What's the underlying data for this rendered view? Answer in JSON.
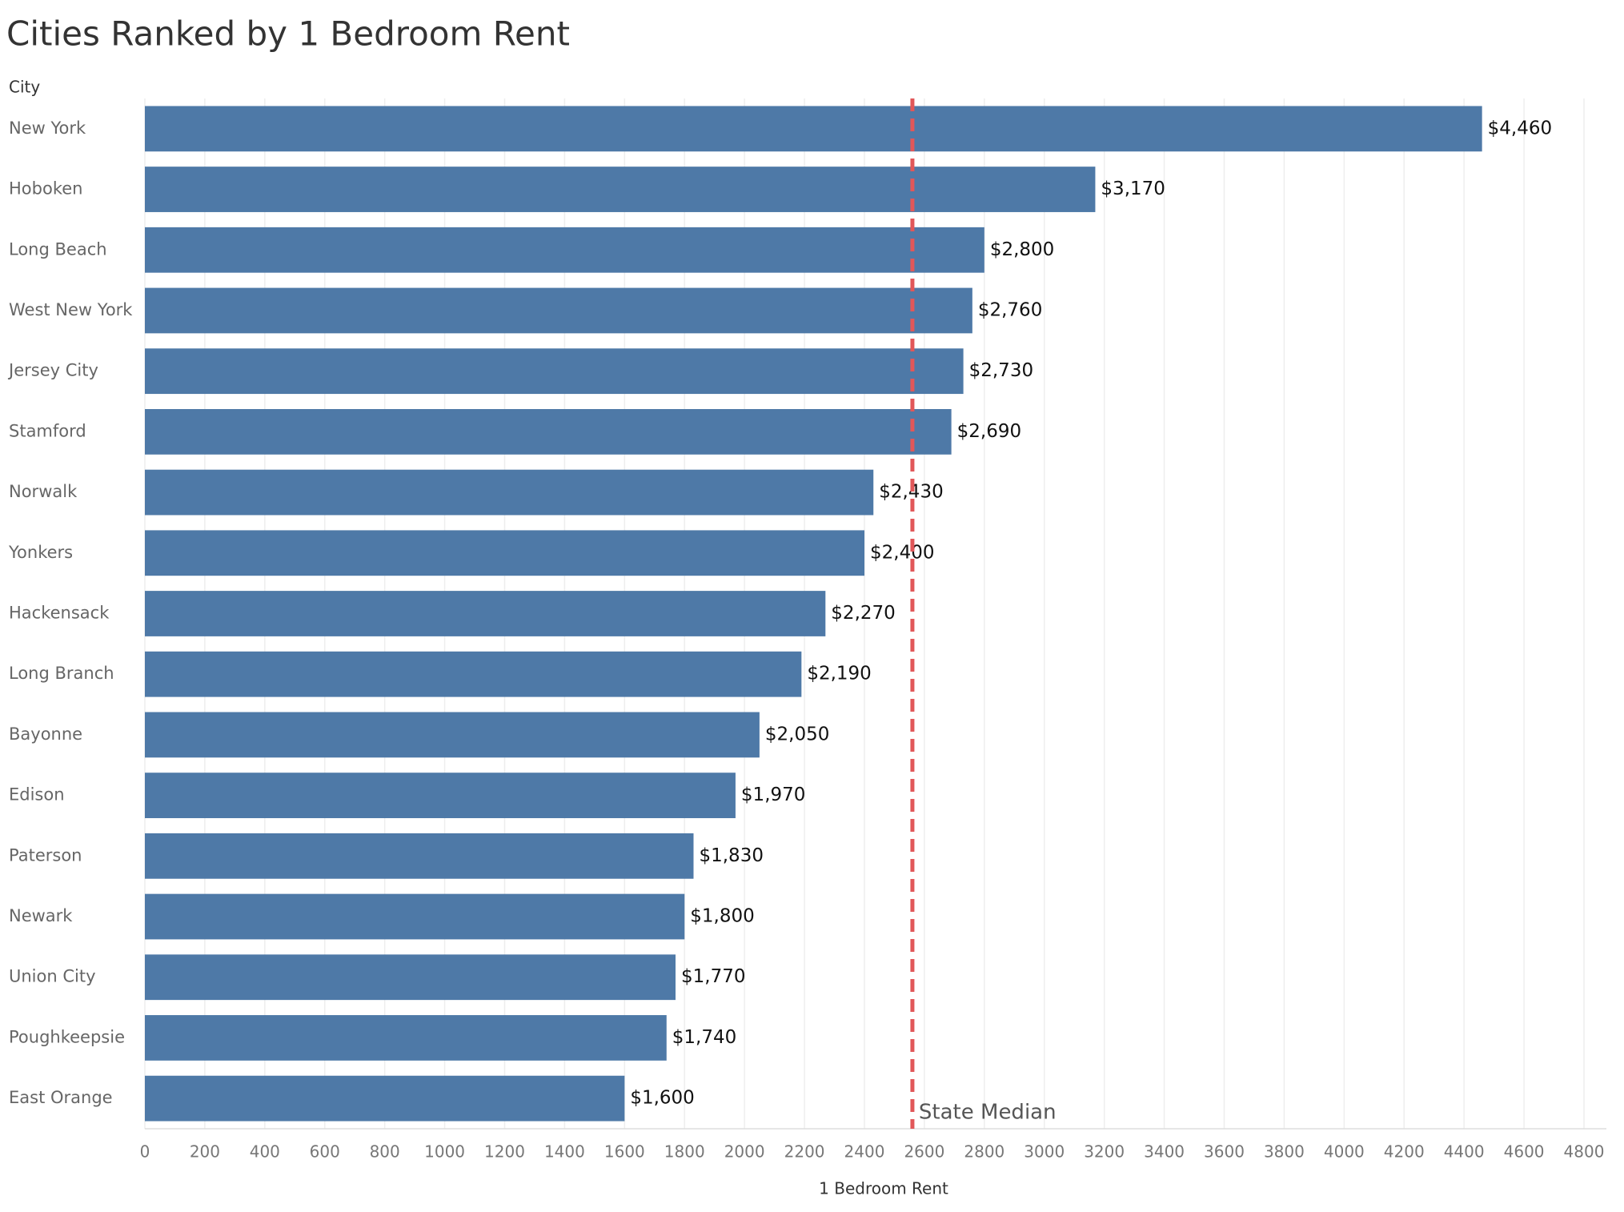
{
  "chart_data": {
    "type": "bar",
    "orientation": "horizontal",
    "title": "Cities Ranked by 1 Bedroom Rent",
    "y_axis_label": "City",
    "x_axis_label": "1 Bedroom Rent",
    "categories": [
      "New York",
      "Hoboken",
      "Long Beach",
      "West New York",
      "Jersey City",
      "Stamford",
      "Norwalk",
      "Yonkers",
      "Hackensack",
      "Long Branch",
      "Bayonne",
      "Edison",
      "Paterson",
      "Newark",
      "Union City",
      "Poughkeepsie",
      "East Orange"
    ],
    "values": [
      4460,
      3170,
      2800,
      2760,
      2730,
      2690,
      2430,
      2400,
      2270,
      2190,
      2050,
      1970,
      1830,
      1800,
      1770,
      1740,
      1600
    ],
    "value_labels": [
      "$4,460",
      "$3,170",
      "$2,800",
      "$2,760",
      "$2,730",
      "$2,690",
      "$2,430",
      "$2,400",
      "$2,270",
      "$2,190",
      "$2,050",
      "$1,970",
      "$1,830",
      "$1,800",
      "$1,770",
      "$1,740",
      "$1,600"
    ],
    "color": "#4e79a7",
    "xlim": [
      0,
      4800
    ],
    "xticks": [
      0,
      200,
      400,
      600,
      800,
      1000,
      1200,
      1400,
      1600,
      1800,
      2000,
      2200,
      2400,
      2600,
      2800,
      3000,
      3200,
      3400,
      3600,
      3800,
      4000,
      4200,
      4400,
      4600,
      4800
    ],
    "grid": true,
    "reference_line": {
      "value": 2560,
      "label": "State Median",
      "color": "#e15759"
    }
  }
}
